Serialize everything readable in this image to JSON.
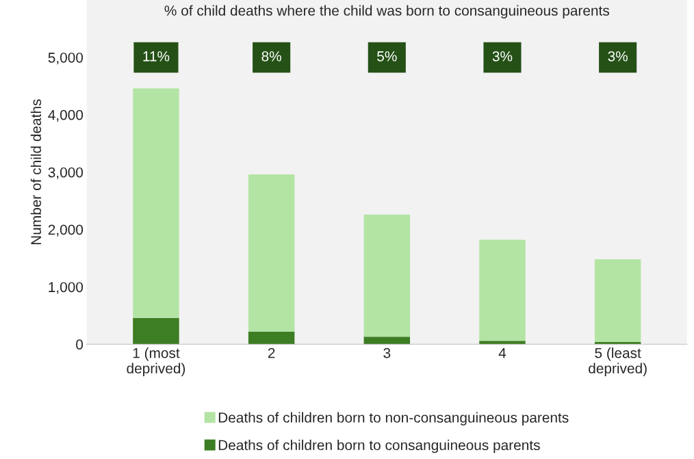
{
  "chart_data": {
    "type": "bar",
    "stacked": true,
    "ylabel": "Number of child deaths",
    "categories": [
      "1 (most\ndeprived)",
      "2",
      "3",
      "4",
      "5 (least\ndeprived)"
    ],
    "series": [
      {
        "name": "Deaths of children born to consanguineous parents",
        "color": "#3d7d23",
        "values": [
          460,
          220,
          130,
          60,
          40
        ]
      },
      {
        "name": "Deaths of children born to non-consanguineous parents",
        "color": "#b3e4a4",
        "values": [
          4000,
          2740,
          2130,
          1760,
          1440
        ]
      }
    ],
    "ylim": [
      0,
      6000
    ],
    "yticks": [
      {
        "value": 0,
        "label": "0"
      },
      {
        "value": 1000,
        "label": "1,000"
      },
      {
        "value": 2000,
        "label": "2,000"
      },
      {
        "value": 3000,
        "label": "3,000"
      },
      {
        "value": 4000,
        "label": "4,000"
      },
      {
        "value": 5000,
        "label": "5,000"
      }
    ],
    "grid": false,
    "legend": "bottom",
    "annotations": [
      "% of child deaths where the child was born to consanguineous parents",
      "11%",
      "8%",
      "5%",
      "3%",
      "3%"
    ]
  }
}
